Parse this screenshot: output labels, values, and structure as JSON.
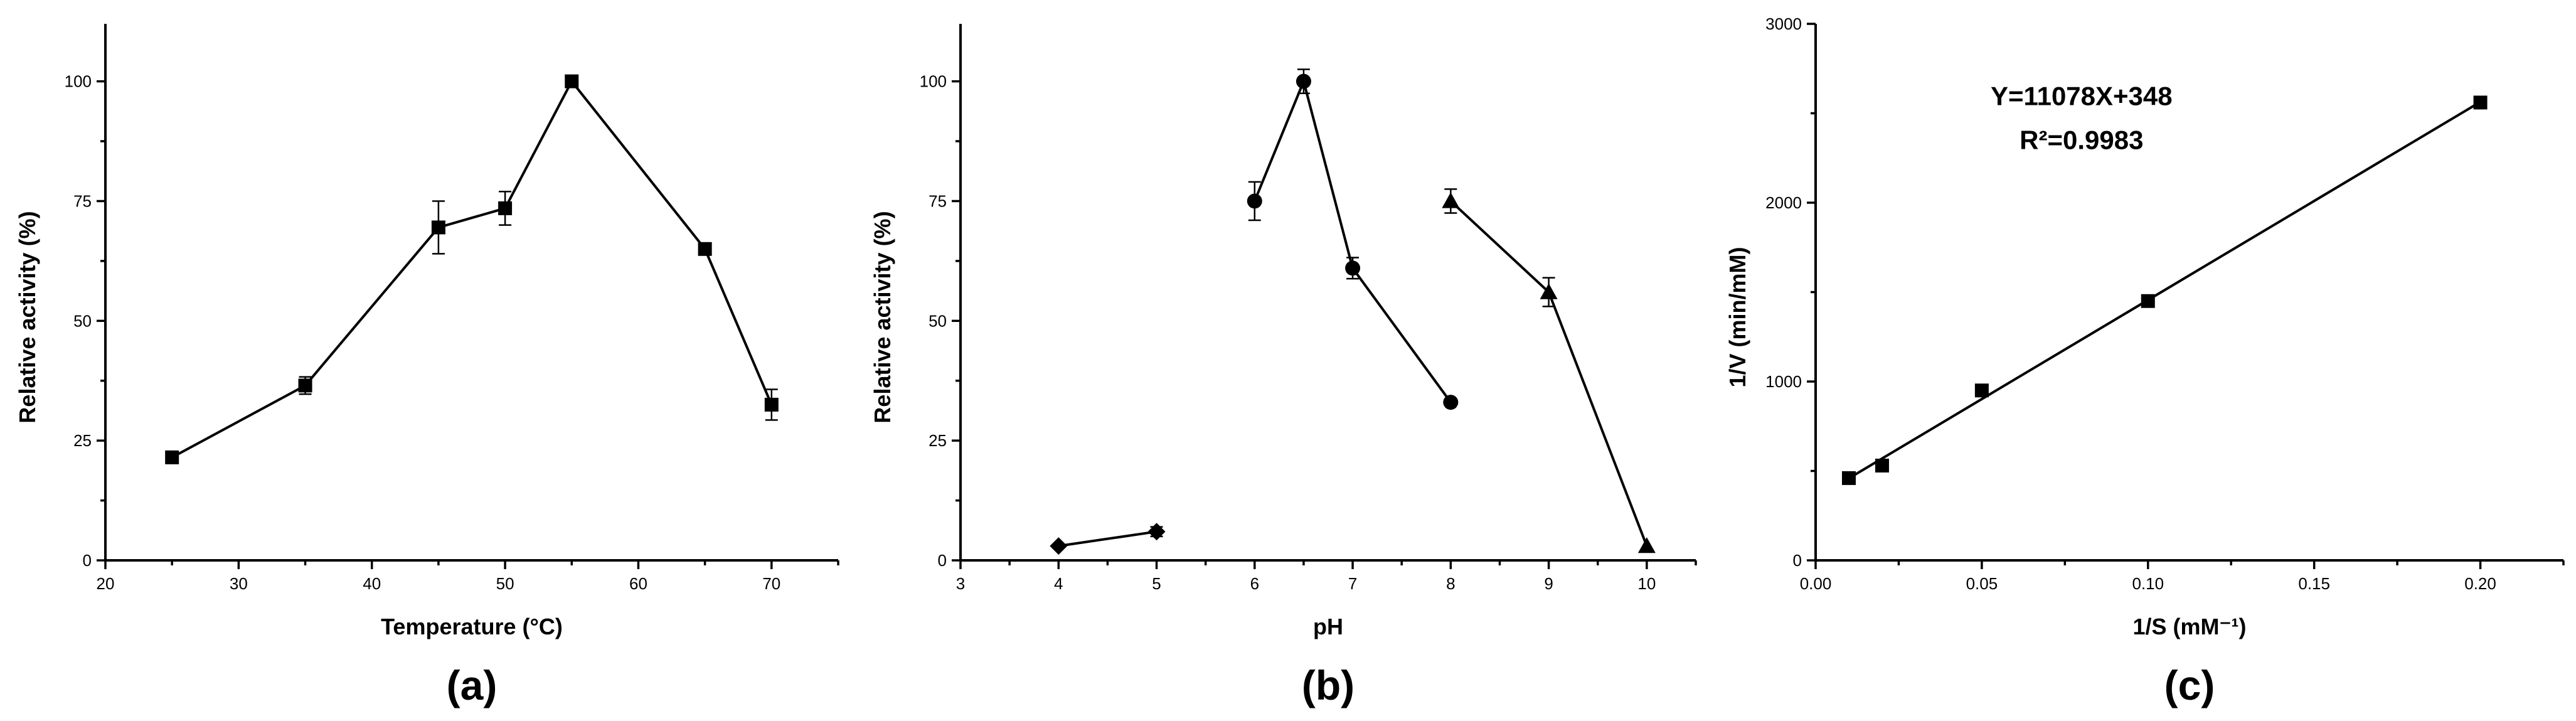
{
  "chart_data": [
    {
      "type": "line",
      "panel_label": "(a)",
      "xlabel": "Temperature (°C)",
      "ylabel": "Relative activity (%)",
      "xlim": [
        20,
        75
      ],
      "ylim": [
        0,
        112
      ],
      "xticks": [
        20,
        30,
        40,
        50,
        60,
        70
      ],
      "yticks": [
        0,
        25,
        50,
        75,
        100
      ],
      "grid": false,
      "series": [
        {
          "marker": "square",
          "x": [
            25,
            35,
            45,
            50,
            55,
            65,
            70
          ],
          "y": [
            21.5,
            36.5,
            69.5,
            73.5,
            100,
            65,
            32.5
          ],
          "yerr": [
            0,
            1.8,
            5.5,
            3.5,
            0,
            0,
            3.2
          ]
        }
      ]
    },
    {
      "type": "line",
      "panel_label": "(b)",
      "xlabel": "pH",
      "ylabel": "Relative activity (%)",
      "xlim": [
        3,
        10.5
      ],
      "ylim": [
        0,
        112
      ],
      "xticks": [
        3,
        4,
        5,
        6,
        7,
        8,
        9,
        10
      ],
      "yticks": [
        0,
        25,
        50,
        75,
        100
      ],
      "grid": false,
      "series": [
        {
          "marker": "diamond",
          "x": [
            4,
            5
          ],
          "y": [
            3,
            6
          ],
          "yerr": [
            0,
            1
          ]
        },
        {
          "marker": "circle",
          "x": [
            6,
            6.5,
            7,
            8
          ],
          "y": [
            75,
            100,
            61,
            33
          ],
          "yerr": [
            4,
            2.5,
            2.2,
            0
          ]
        },
        {
          "marker": "triangle",
          "x": [
            8,
            9,
            10
          ],
          "y": [
            75,
            56,
            3
          ],
          "yerr": [
            2.5,
            3,
            0
          ]
        }
      ]
    },
    {
      "type": "scatter",
      "panel_label": "(c)",
      "xlabel": "1/S (mM⁻¹)",
      "ylabel": "1/V (min/mM)",
      "xlim": [
        0,
        0.225
      ],
      "ylim": [
        0,
        3000
      ],
      "xticks": [
        0.0,
        0.05,
        0.1,
        0.15,
        0.2
      ],
      "xticklabels": [
        "0.00",
        "0.05",
        "0.10",
        "0.15",
        "0.20"
      ],
      "yticks": [
        0,
        1000,
        2000,
        3000
      ],
      "grid": false,
      "annotation": [
        "Y=11078X+348",
        "R²=0.9983"
      ],
      "fit": {
        "slope": 11078,
        "intercept": 348,
        "x_range": [
          0.01,
          0.2
        ]
      },
      "series": [
        {
          "marker": "square",
          "x": [
            0.01,
            0.02,
            0.05,
            0.1,
            0.2
          ],
          "y": [
            460,
            530,
            950,
            1450,
            2560
          ]
        }
      ]
    }
  ]
}
